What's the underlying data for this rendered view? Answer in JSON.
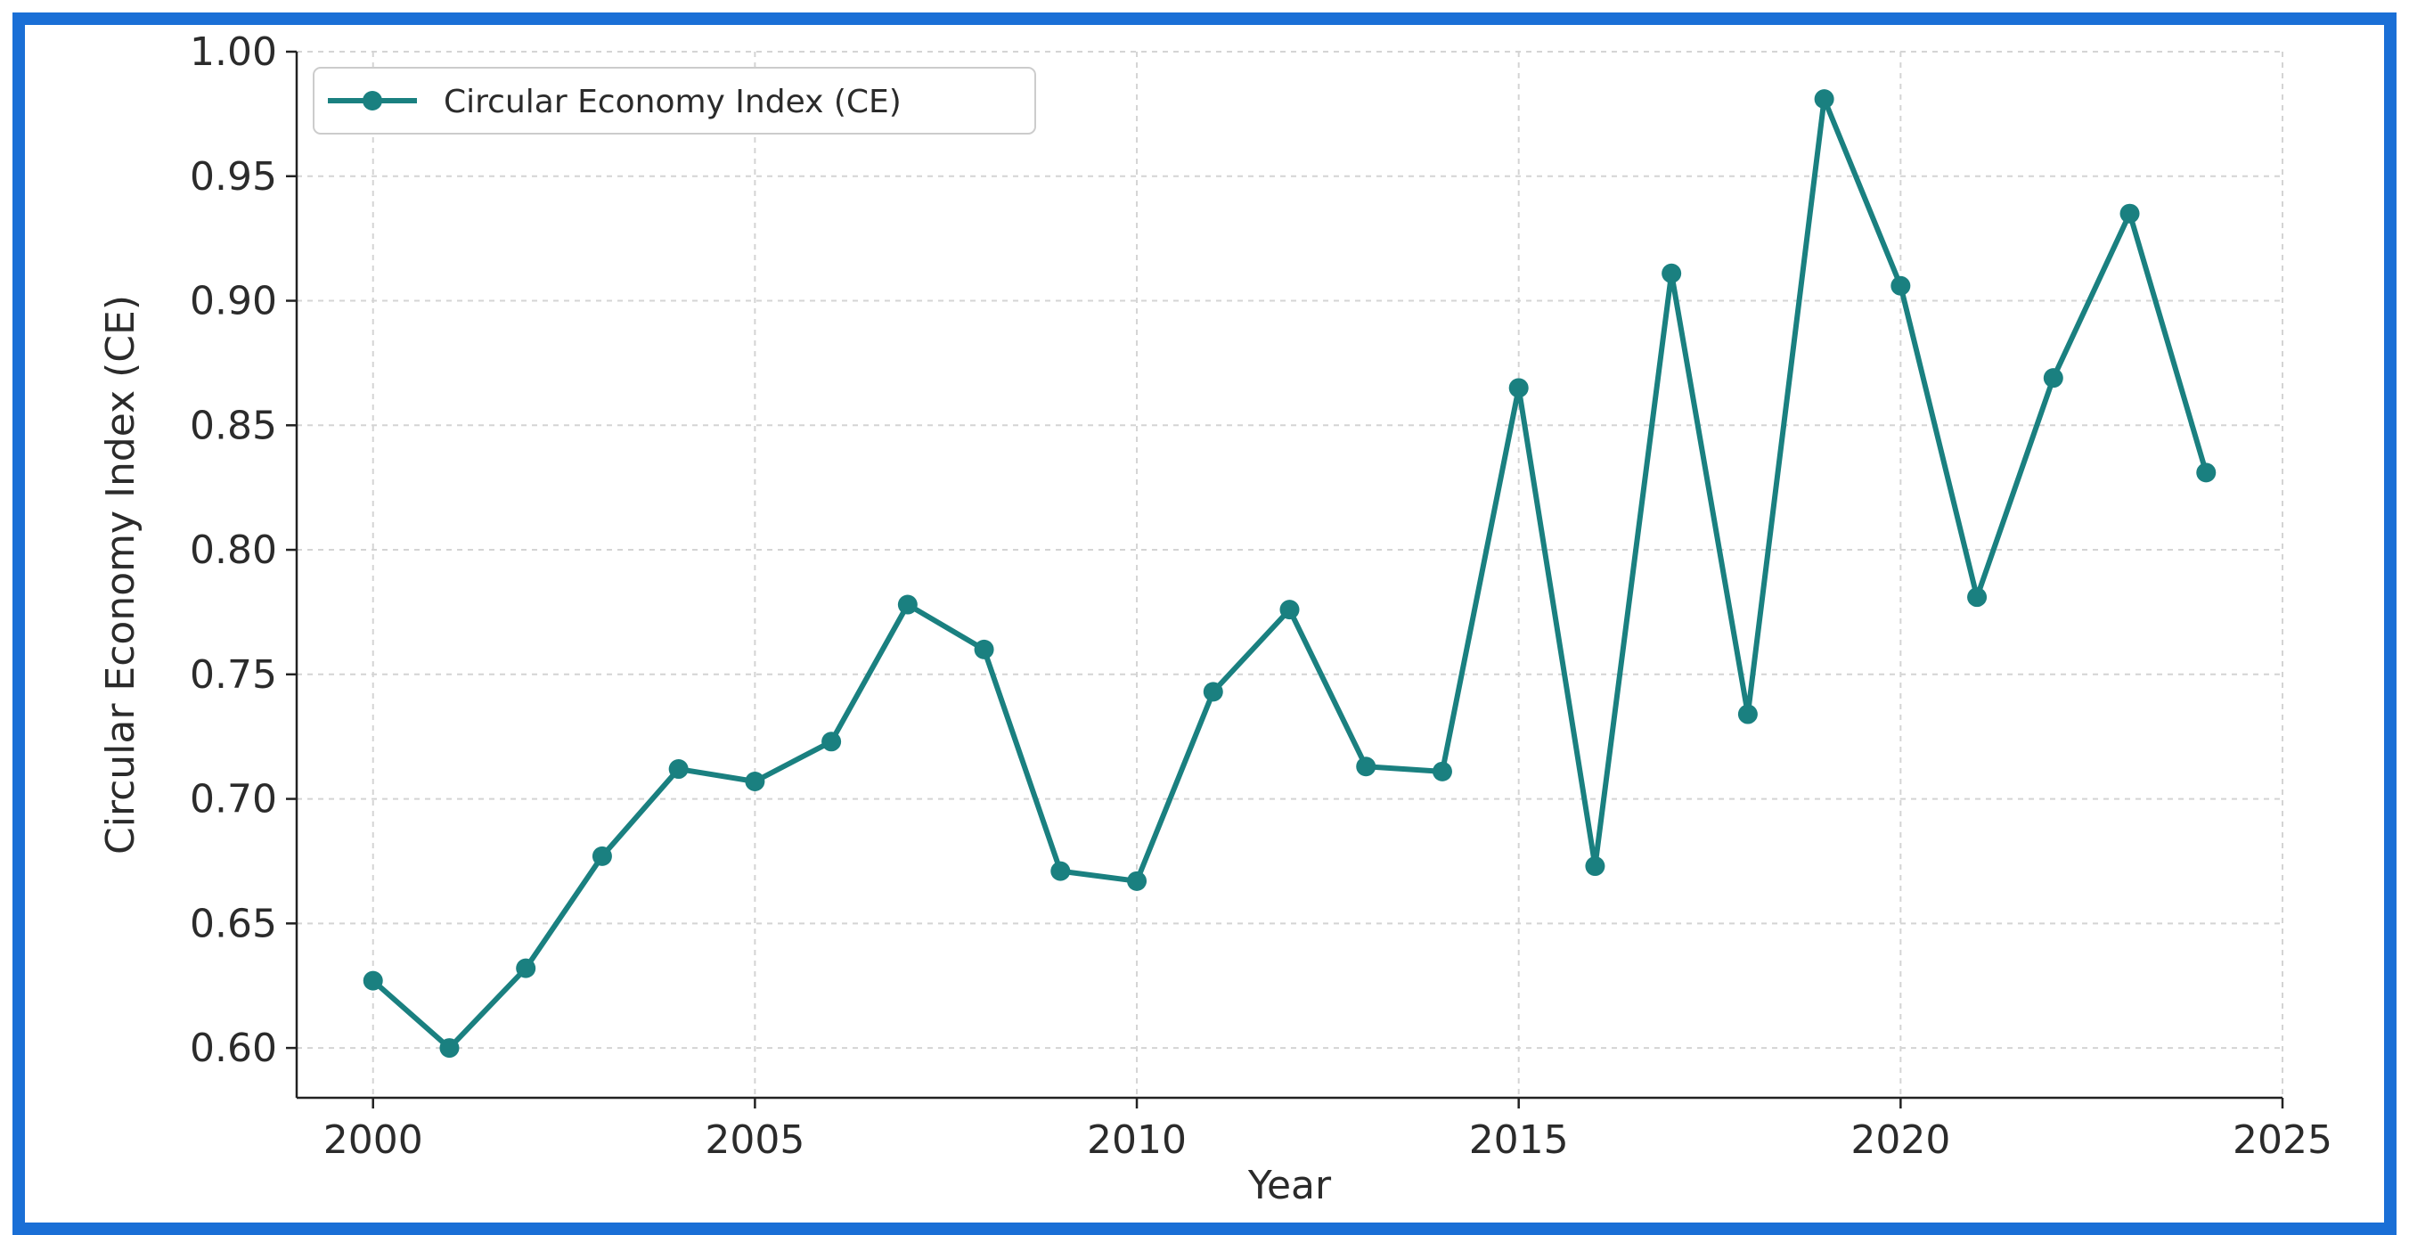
{
  "chart_data": {
    "type": "line",
    "title": "",
    "xlabel": "Year",
    "ylabel": "Circular Economy Index (CE)",
    "xlim": [
      1999,
      2025
    ],
    "ylim": [
      0.58,
      1.0
    ],
    "xticks": [
      2000,
      2005,
      2010,
      2015,
      2020,
      2025
    ],
    "yticks": [
      0.6,
      0.65,
      0.7,
      0.75,
      0.8,
      0.85,
      0.9,
      0.95,
      1.0
    ],
    "xtick_labels": [
      "2000",
      "2005",
      "2010",
      "2015",
      "2020",
      "2025"
    ],
    "ytick_labels": [
      "0.60",
      "0.65",
      "0.70",
      "0.75",
      "0.80",
      "0.85",
      "0.90",
      "0.95",
      "1.00"
    ],
    "grid": true,
    "legend_position": "top-left",
    "series": [
      {
        "name": "Circular Economy Index (CE)",
        "color": "#1a8080",
        "marker": "circle",
        "x": [
          2000,
          2001,
          2002,
          2003,
          2004,
          2005,
          2006,
          2007,
          2008,
          2009,
          2010,
          2011,
          2012,
          2013,
          2014,
          2015,
          2016,
          2017,
          2018,
          2019,
          2020,
          2021,
          2022,
          2023,
          2024
        ],
        "values": [
          0.627,
          0.6,
          0.632,
          0.677,
          0.712,
          0.707,
          0.723,
          0.778,
          0.76,
          0.671,
          0.667,
          0.743,
          0.776,
          0.713,
          0.711,
          0.865,
          0.673,
          0.911,
          0.734,
          0.981,
          0.906,
          0.781,
          0.869,
          0.935,
          0.831
        ]
      }
    ]
  },
  "frame_color": "#1a6fd6"
}
